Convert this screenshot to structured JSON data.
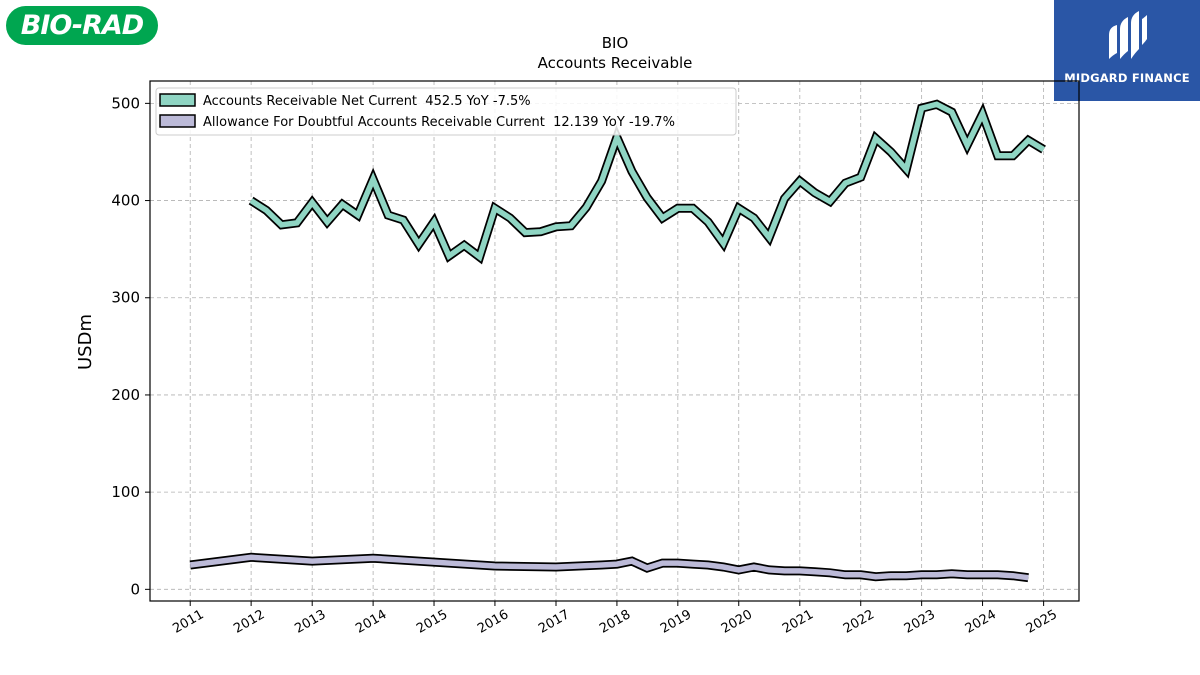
{
  "brand": {
    "company_logo": "BIO-RAD",
    "publisher_logo": "MIDGARD FINANCE"
  },
  "colors": {
    "series1": "#8fd5c3",
    "series2": "#bcbad8",
    "outline": "#000000",
    "grid": "#b0b0b0"
  },
  "chart_data": {
    "type": "line",
    "title": "BIO",
    "subtitle": "Accounts Receivable",
    "ylabel": "USDm",
    "xlabel": "",
    "ylim": [
      -12,
      523
    ],
    "xlim": [
      "2010-05-05",
      "2025-08-01"
    ],
    "x_ticks": [
      "2011",
      "2012",
      "2013",
      "2014",
      "2015",
      "2016",
      "2017",
      "2018",
      "2019",
      "2020",
      "2021",
      "2022",
      "2023",
      "2024",
      "2025"
    ],
    "y_ticks": [
      0,
      100,
      200,
      300,
      400,
      500
    ],
    "grid": true,
    "legend_position": "top-left",
    "series": [
      {
        "name": "Accounts Receivable Net Current  452.5 YoY -7.5%",
        "color": "#8fd5c3",
        "points": [
          [
            "2012-01-01",
            400
          ],
          [
            "2012-04-01",
            390
          ],
          [
            "2012-07-01",
            375
          ],
          [
            "2012-10-01",
            377
          ],
          [
            "2013-01-01",
            398
          ],
          [
            "2013-04-01",
            378
          ],
          [
            "2013-07-01",
            396
          ],
          [
            "2013-10-01",
            385
          ],
          [
            "2014-01-01",
            422
          ],
          [
            "2014-04-01",
            385
          ],
          [
            "2014-07-01",
            380
          ],
          [
            "2014-10-01",
            355
          ],
          [
            "2015-01-01",
            378
          ],
          [
            "2015-04-01",
            343
          ],
          [
            "2015-07-01",
            354
          ],
          [
            "2015-10-01",
            342
          ],
          [
            "2016-01-01",
            392
          ],
          [
            "2016-04-01",
            382
          ],
          [
            "2016-07-01",
            367
          ],
          [
            "2016-10-01",
            368
          ],
          [
            "2017-01-01",
            373
          ],
          [
            "2017-04-01",
            374
          ],
          [
            "2017-07-01",
            393
          ],
          [
            "2017-10-01",
            420
          ],
          [
            "2018-01-01",
            465
          ],
          [
            "2018-04-01",
            430
          ],
          [
            "2018-07-01",
            403
          ],
          [
            "2018-10-01",
            382
          ],
          [
            "2019-01-01",
            392
          ],
          [
            "2019-04-01",
            392
          ],
          [
            "2019-07-01",
            378
          ],
          [
            "2019-10-01",
            356
          ],
          [
            "2020-01-01",
            392
          ],
          [
            "2020-04-01",
            382
          ],
          [
            "2020-07-01",
            362
          ],
          [
            "2020-10-01",
            402
          ],
          [
            "2021-01-01",
            420
          ],
          [
            "2021-04-01",
            408
          ],
          [
            "2021-07-01",
            399
          ],
          [
            "2021-10-01",
            418
          ],
          [
            "2022-01-01",
            424
          ],
          [
            "2022-04-01",
            464
          ],
          [
            "2022-07-01",
            450
          ],
          [
            "2022-10-01",
            432
          ],
          [
            "2023-01-01",
            495
          ],
          [
            "2023-04-01",
            499
          ],
          [
            "2023-07-01",
            491
          ],
          [
            "2023-10-01",
            457
          ],
          [
            "2024-01-01",
            489
          ],
          [
            "2024-04-01",
            446
          ],
          [
            "2024-07-01",
            446
          ],
          [
            "2024-10-01",
            462
          ],
          [
            "2025-01-01",
            452.5
          ]
        ]
      },
      {
        "name": "Allowance For Doubtful Accounts Receivable Current  12.139 YoY -19.7%",
        "color": "#bcbad8",
        "points": [
          [
            "2011-01-01",
            25
          ],
          [
            "2012-01-01",
            33
          ],
          [
            "2013-01-01",
            29
          ],
          [
            "2014-01-01",
            32
          ],
          [
            "2015-01-01",
            28
          ],
          [
            "2016-01-01",
            24
          ],
          [
            "2017-01-01",
            23
          ],
          [
            "2017-10-01",
            25
          ],
          [
            "2018-01-01",
            26
          ],
          [
            "2018-04-01",
            29
          ],
          [
            "2018-07-01",
            22
          ],
          [
            "2018-10-01",
            27
          ],
          [
            "2019-01-01",
            27
          ],
          [
            "2019-04-01",
            26
          ],
          [
            "2019-07-01",
            25
          ],
          [
            "2019-10-01",
            23
          ],
          [
            "2020-01-01",
            20
          ],
          [
            "2020-04-01",
            23
          ],
          [
            "2020-07-01",
            20
          ],
          [
            "2020-10-01",
            19
          ],
          [
            "2021-01-01",
            19
          ],
          [
            "2021-04-01",
            18
          ],
          [
            "2021-07-01",
            17
          ],
          [
            "2021-10-01",
            15
          ],
          [
            "2022-01-01",
            15
          ],
          [
            "2022-04-01",
            13
          ],
          [
            "2022-07-01",
            14
          ],
          [
            "2022-10-01",
            14
          ],
          [
            "2023-01-01",
            15
          ],
          [
            "2023-04-01",
            15
          ],
          [
            "2023-07-01",
            16
          ],
          [
            "2023-10-01",
            15
          ],
          [
            "2024-01-01",
            15
          ],
          [
            "2024-04-01",
            15
          ],
          [
            "2024-07-01",
            14
          ],
          [
            "2024-10-01",
            12
          ]
        ]
      }
    ]
  }
}
